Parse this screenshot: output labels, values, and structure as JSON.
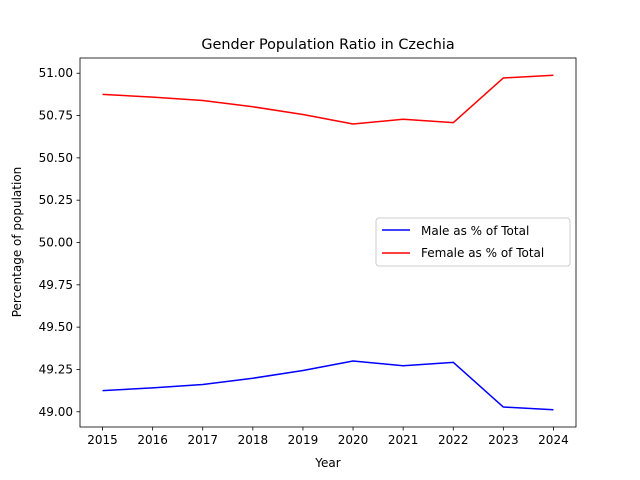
{
  "chart_data": {
    "type": "line",
    "title": "Gender Population Ratio in Czechia",
    "xlabel": "Year",
    "ylabel": "Percentage of population",
    "x": [
      2015,
      2016,
      2017,
      2018,
      2019,
      2020,
      2021,
      2022,
      2023,
      2024
    ],
    "xticks": [
      "2015",
      "2016",
      "2017",
      "2018",
      "2019",
      "2020",
      "2021",
      "2022",
      "2023",
      "2024"
    ],
    "yticks": [
      "49.00",
      "49.25",
      "49.50",
      "49.75",
      "50.00",
      "50.25",
      "50.50",
      "50.75",
      "51.00"
    ],
    "ytick_values": [
      49.0,
      49.25,
      49.5,
      49.75,
      50.0,
      50.25,
      50.5,
      50.75,
      51.0
    ],
    "ylim": [
      48.91,
      51.09
    ],
    "xlim": [
      2014.55,
      2024.45
    ],
    "grid": false,
    "legend_position": "center-right",
    "series": [
      {
        "name": "Male as % of Total",
        "color": "#0000ff",
        "values": [
          49.125,
          49.141,
          49.161,
          49.198,
          49.244,
          49.3,
          49.272,
          49.292,
          49.028,
          49.012
        ]
      },
      {
        "name": "Female as % of Total",
        "color": "#ff0000",
        "values": [
          50.875,
          50.859,
          50.839,
          50.802,
          50.756,
          50.7,
          50.728,
          50.708,
          50.972,
          50.988
        ]
      }
    ]
  }
}
